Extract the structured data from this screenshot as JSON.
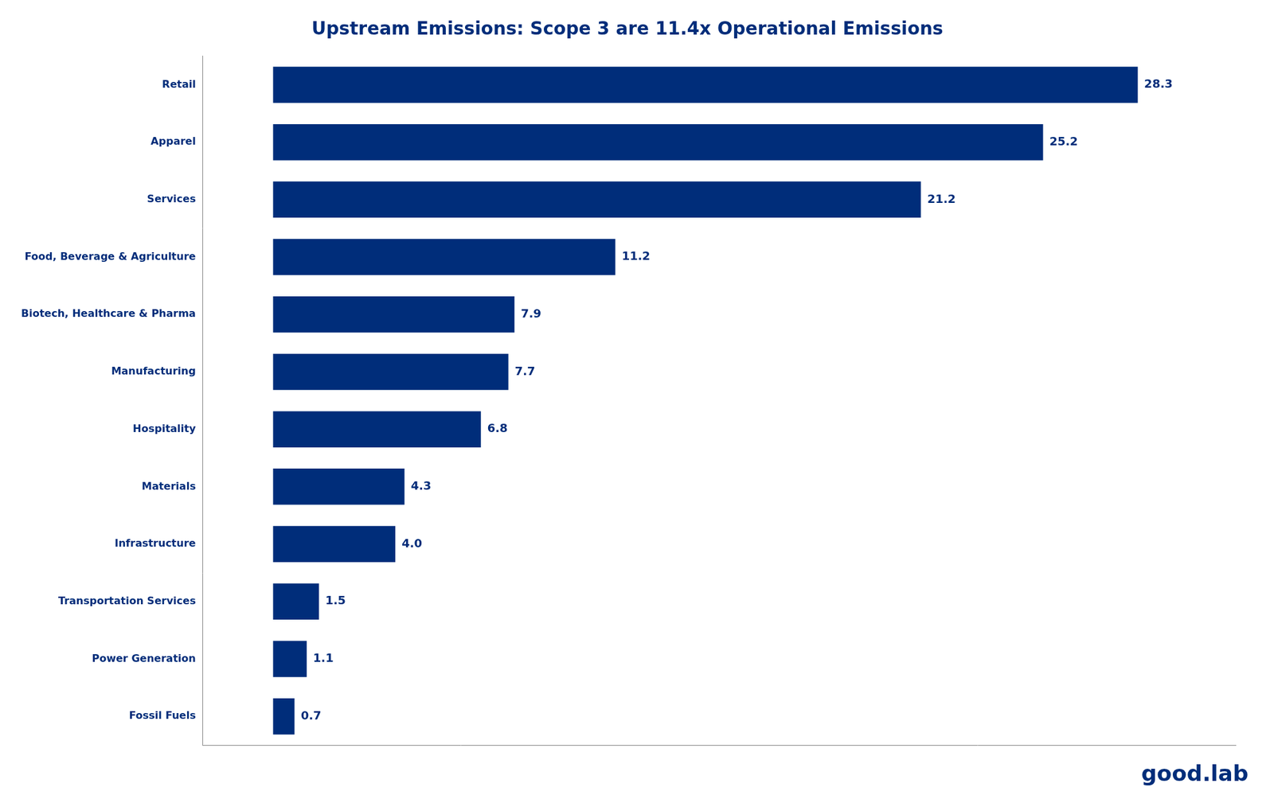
{
  "chart_data": {
    "type": "bar",
    "orientation": "horizontal",
    "title": "Upstream Emissions: Scope 3 are 11.4x Operational Emissions",
    "categories": [
      "Retail",
      "Apparel",
      "Services",
      "Food, Beverage & Agriculture",
      "Biotech, Healthcare & Pharma",
      "Manufacturing",
      "Hospitality",
      "Materials",
      "Infrastructure",
      "Transportation Services",
      "Power Generation",
      "Fossil Fuels"
    ],
    "values": [
      28.3,
      25.2,
      21.2,
      11.2,
      7.9,
      7.7,
      6.8,
      4.3,
      4.0,
      1.5,
      1.1,
      0.7
    ],
    "value_labels": [
      "28.3",
      "25.2",
      "21.2",
      "11.2",
      "7.9",
      "7.7",
      "6.8",
      "4.3",
      "4.0",
      "1.5",
      "1.1",
      "0.7"
    ],
    "color": "#002d7a",
    "xlim": [
      -2.3,
      31.5
    ],
    "data_labels": true,
    "tick_labels": "y",
    "grid": false,
    "annotations": [
      "good.lab"
    ]
  }
}
